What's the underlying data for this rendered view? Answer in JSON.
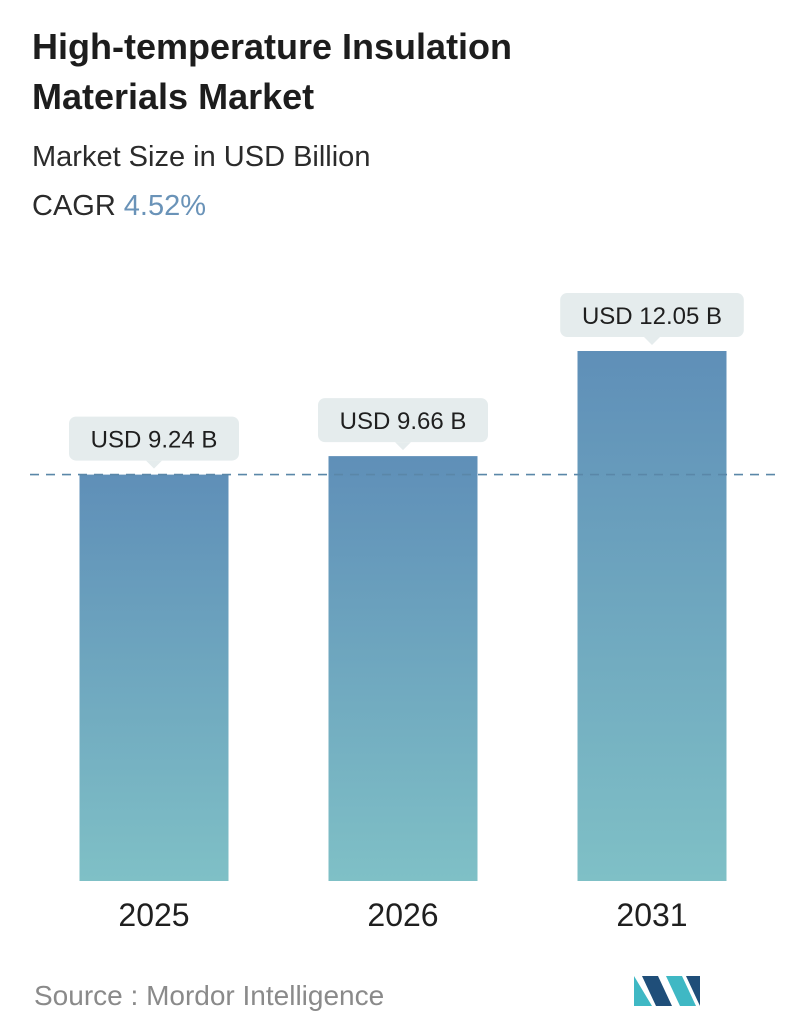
{
  "header": {
    "title": "High-temperature Insulation Materials Market",
    "subtitle": "Market Size in USD Billion",
    "cagr_label": "CAGR",
    "cagr_value": "4.52%"
  },
  "footer": {
    "source_label": "Source :",
    "source_name": "Mordor Intelligence",
    "logo_icon": "mordor-intelligence-logo-icon"
  },
  "colors": {
    "bar_top": "#5f8fb8",
    "bar_bottom": "#7fc0c6",
    "label_bg": "#e5eced",
    "reference_line": "#5a87a8",
    "cagr_accent": "#6a93b8",
    "logo_dark": "#1f4e79",
    "logo_light": "#3fb8c4"
  },
  "chart_data": {
    "type": "bar",
    "categories": [
      "2025",
      "2026",
      "2031"
    ],
    "values": [
      9.24,
      9.66,
      12.05
    ],
    "value_labels": [
      "USD 9.24 B",
      "USD 9.66 B",
      "USD 12.05 B"
    ],
    "title": "High-temperature Insulation Materials Market",
    "subtitle": "Market Size in USD Billion",
    "ylabel": "",
    "xlabel": "",
    "ylim": [
      0,
      12.05
    ],
    "reference_line": 9.24,
    "grid": false,
    "legend": "none"
  }
}
